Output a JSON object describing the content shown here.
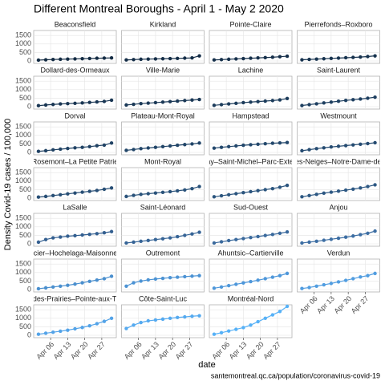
{
  "chart_data": {
    "type": "line",
    "title": "Different Montreal Boroughs - April 1 - May 2 2020",
    "y_label": "Density Covid-19 cases / 100,000",
    "x_label": "date",
    "caption": "santemontreal.qc.ca/population/coronavirus-covid-19",
    "x": [
      "2020-04-01",
      "2020-04-04",
      "2020-04-07",
      "2020-04-10",
      "2020-04-13",
      "2020-04-16",
      "2020-04-19",
      "2020-04-22",
      "2020-04-25",
      "2020-04-28",
      "2020-05-01"
    ],
    "xticks": [
      {
        "value": "2020-04-06",
        "label": "Apr 06"
      },
      {
        "value": "2020-04-13",
        "label": "Apr 13"
      },
      {
        "value": "2020-04-20",
        "label": "Apr 20"
      },
      {
        "value": "2020-04-27",
        "label": "Apr 27"
      }
    ],
    "ylim": [
      0,
      1700
    ],
    "yticks": [
      0,
      500,
      1000,
      1500
    ],
    "grid": true,
    "series": [
      {
        "name": "Beaconsfield",
        "color": "#132b43",
        "values": [
          50,
          70,
          85,
          100,
          110,
          120,
          135,
          145,
          160,
          170,
          180
        ]
      },
      {
        "name": "Kirkland",
        "color": "#142d47",
        "values": [
          60,
          80,
          100,
          110,
          120,
          130,
          140,
          150,
          165,
          180,
          300
        ]
      },
      {
        "name": "Pointe-Claire",
        "color": "#16304b",
        "values": [
          60,
          80,
          100,
          120,
          140,
          160,
          180,
          200,
          220,
          250,
          280
        ]
      },
      {
        "name": "Pierrefonds–Roxboro",
        "color": "#17334f",
        "values": [
          70,
          90,
          110,
          130,
          150,
          170,
          190,
          210,
          230,
          260,
          300
        ]
      },
      {
        "name": "Dollard-des-Ormeaux",
        "color": "#193653",
        "values": [
          60,
          100,
          130,
          160,
          180,
          200,
          220,
          250,
          280,
          310,
          380
        ]
      },
      {
        "name": "Ville-Marie",
        "color": "#1b3957",
        "values": [
          100,
          140,
          180,
          210,
          240,
          270,
          300,
          330,
          360,
          390,
          420
        ]
      },
      {
        "name": "Lachine",
        "color": "#1c3c5b",
        "values": [
          80,
          120,
          160,
          200,
          240,
          270,
          300,
          330,
          360,
          400,
          480
        ]
      },
      {
        "name": "Saint-Laurent",
        "color": "#1e3f60",
        "values": [
          70,
          120,
          170,
          220,
          270,
          320,
          370,
          410,
          450,
          500,
          560
        ]
      },
      {
        "name": "Dorval",
        "color": "#204264",
        "values": [
          60,
          100,
          150,
          190,
          230,
          270,
          300,
          340,
          390,
          430,
          550
        ]
      },
      {
        "name": "Plateau-Mont-Royal",
        "color": "#214568",
        "values": [
          120,
          170,
          220,
          260,
          300,
          340,
          380,
          420,
          460,
          500,
          550
        ]
      },
      {
        "name": "Hampstead",
        "color": "#23486c",
        "values": [
          250,
          300,
          340,
          380,
          420,
          450,
          480,
          510,
          540,
          560,
          580
        ]
      },
      {
        "name": "Westmount",
        "color": "#254b71",
        "values": [
          100,
          160,
          220,
          270,
          320,
          360,
          400,
          440,
          480,
          520,
          570
        ]
      },
      {
        "name": "Rosemont–La Petite Patrie",
        "color": "#274e75",
        "values": [
          60,
          100,
          150,
          200,
          250,
          300,
          350,
          400,
          450,
          520,
          600
        ]
      },
      {
        "name": "Mont-Royal",
        "color": "#29527a",
        "values": [
          100,
          160,
          220,
          260,
          300,
          340,
          380,
          430,
          480,
          560,
          680
        ]
      },
      {
        "name": "Villeray–Saint-Michel–Parc-Extension",
        "color": "#2b557e",
        "values": [
          80,
          140,
          200,
          260,
          320,
          380,
          440,
          500,
          560,
          640,
          750
        ]
      },
      {
        "name": "Côte-des-Neiges–Notre-Dame-de-Grâce",
        "color": "#2d5883",
        "values": [
          80,
          150,
          220,
          290,
          350,
          410,
          470,
          530,
          600,
          680,
          780
        ]
      },
      {
        "name": "LaSalle",
        "color": "#335f90",
        "values": [
          100,
          250,
          350,
          400,
          450,
          480,
          520,
          560,
          600,
          650,
          720
        ]
      },
      {
        "name": "Saint-Léonard",
        "color": "#366496",
        "values": [
          50,
          100,
          150,
          200,
          250,
          300,
          350,
          420,
          500,
          580,
          680
        ]
      },
      {
        "name": "Sud-Ouest",
        "color": "#3a699c",
        "values": [
          50,
          120,
          190,
          250,
          310,
          370,
          430,
          490,
          550,
          620,
          700
        ]
      },
      {
        "name": "Anjou",
        "color": "#3d6ea3",
        "values": [
          50,
          100,
          150,
          210,
          270,
          330,
          390,
          460,
          540,
          620,
          750
        ]
      },
      {
        "name": "Mercier–Hochelaga-Maisonneuve",
        "color": "#4a8fce",
        "values": [
          50,
          100,
          150,
          200,
          250,
          320,
          400,
          480,
          560,
          640,
          780
        ]
      },
      {
        "name": "Outremont",
        "color": "#4c93d4",
        "values": [
          200,
          400,
          500,
          570,
          620,
          660,
          700,
          730,
          760,
          790,
          820
        ]
      },
      {
        "name": "Ahuntsic–Cartierville",
        "color": "#4e97da",
        "values": [
          80,
          150,
          230,
          310,
          390,
          470,
          550,
          640,
          730,
          820,
          950
        ]
      },
      {
        "name": "Verdun",
        "color": "#519de0",
        "values": [
          60,
          120,
          200,
          280,
          360,
          450,
          540,
          640,
          740,
          820,
          950
        ]
      },
      {
        "name": "Rivière-des-Prairies–Pointe-aux-Trembles",
        "color": "#53a3e8",
        "values": [
          60,
          120,
          180,
          240,
          300,
          380,
          460,
          560,
          680,
          820,
          1000
        ]
      },
      {
        "name": "Côte-Saint-Luc",
        "color": "#55aaf0",
        "values": [
          400,
          600,
          750,
          850,
          900,
          950,
          1000,
          1050,
          1080,
          1120,
          1150
        ]
      },
      {
        "name": "Montréal-Nord",
        "color": "#56b1f7",
        "values": [
          60,
          150,
          250,
          350,
          450,
          600,
          800,
          1000,
          1200,
          1400,
          1700
        ]
      }
    ]
  }
}
